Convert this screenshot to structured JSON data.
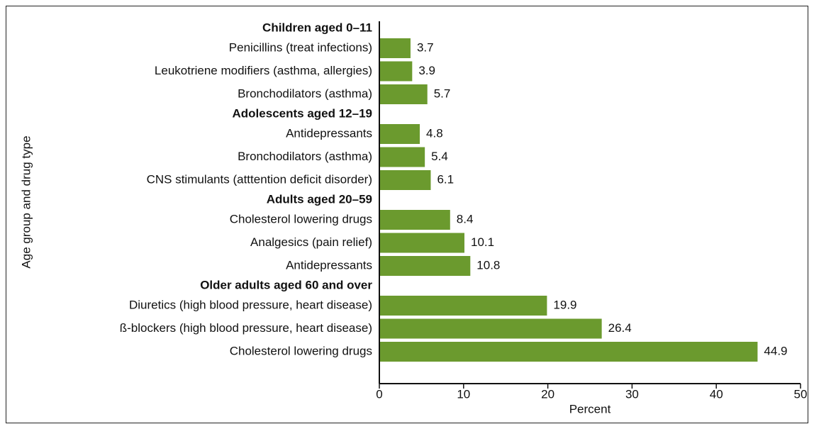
{
  "chart_data": {
    "type": "bar",
    "orientation": "horizontal",
    "ylabel": "Age group and drug type",
    "xlabel": "Percent",
    "color": "#6b9a2e",
    "groups": [
      {
        "name": "Children aged 0–11",
        "categories": [
          "Penicillins (treat infections)",
          "Leukotriene modifiers (asthma, allergies)",
          "Bronchodilators (asthma)"
        ],
        "values": [
          3.7,
          3.9,
          5.7
        ]
      },
      {
        "name": "Adolescents aged 12–19",
        "categories": [
          "Antidepressants",
          "Bronchodilators (asthma)",
          "CNS stimulants (atttention deficit disorder)"
        ],
        "values": [
          4.8,
          5.4,
          6.1
        ]
      },
      {
        "name": "Adults aged 20–59",
        "categories": [
          "Cholesterol lowering drugs",
          "Analgesics (pain relief)",
          "Antidepressants"
        ],
        "values": [
          8.4,
          10.1,
          10.8
        ]
      },
      {
        "name": "Older adults aged 60 and over",
        "categories": [
          "Diuretics (high blood pressure, heart disease)",
          "ß-blockers (high blood pressure, heart disease)",
          "Cholesterol lowering drugs"
        ],
        "values": [
          19.9,
          26.4,
          44.9
        ]
      }
    ],
    "xlim": [
      0,
      50
    ],
    "xticks": [
      0,
      10,
      20,
      30,
      40,
      50
    ]
  }
}
